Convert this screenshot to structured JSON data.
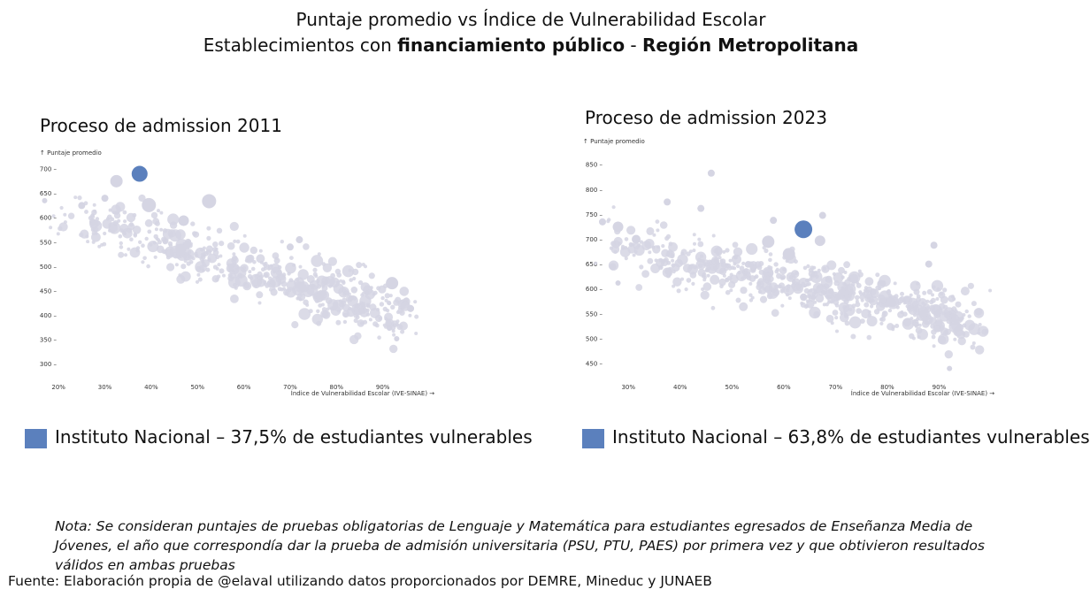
{
  "header": {
    "title_line1": "Puntaje promedio vs Índice de Vulnerabilidad Escolar",
    "title_line2_pre": "Establecimientos con ",
    "title_line2_bold1": "financiamiento público",
    "title_line2_mid": " - ",
    "title_line2_bold2": "Región Metropolitana"
  },
  "colors": {
    "highlight": "#5b80bd",
    "points": "#d5d5e3",
    "axis_text": "#333333"
  },
  "chart_data": [
    {
      "type": "scatter",
      "title": "Proceso de admission 2011",
      "ylabel": "↑ Puntaje promedio",
      "xlabel": "Índice de Vulnerabilidad Escolar (IVE-SINAE) →",
      "xlim": [
        15,
        100
      ],
      "ylim": [
        285,
        720
      ],
      "x_ticks": [
        "20%",
        "30%",
        "40%",
        "50%",
        "60%",
        "70%",
        "80%",
        "90%"
      ],
      "x_tick_values": [
        20,
        30,
        40,
        50,
        60,
        70,
        80,
        90
      ],
      "y_ticks": [
        "700",
        "650",
        "600",
        "550",
        "500",
        "450",
        "400",
        "350",
        "300"
      ],
      "y_tick_values": [
        700,
        650,
        600,
        550,
        500,
        450,
        400,
        350,
        300
      ],
      "trend": {
        "x_start": 20,
        "y_start": 615,
        "x_end": 95,
        "y_end": 400,
        "x_spread": 1.8,
        "y_spread": 30
      },
      "n_points": 520,
      "notable_points": [
        {
          "x": 32.5,
          "y": 675,
          "size": 7
        },
        {
          "x": 39.5,
          "y": 626,
          "size": 8
        },
        {
          "x": 52.5,
          "y": 634,
          "size": 8
        },
        {
          "x": 47,
          "y": 594,
          "size": 6
        },
        {
          "x": 92,
          "y": 466,
          "size": 7
        },
        {
          "x": 30,
          "y": 640,
          "size": 4
        },
        {
          "x": 25,
          "y": 625,
          "size": 4
        },
        {
          "x": 70,
          "y": 540,
          "size": 4
        },
        {
          "x": 72,
          "y": 555,
          "size": 4
        },
        {
          "x": 17,
          "y": 635,
          "size": 3
        },
        {
          "x": 93,
          "y": 352,
          "size": 3
        },
        {
          "x": 96,
          "y": 414,
          "size": 4
        }
      ],
      "highlight": {
        "name": "Instituto Nacional",
        "x": 37.5,
        "y": 690,
        "size": 9
      }
    },
    {
      "type": "scatter",
      "title": "Proceso de admission 2023",
      "ylabel": "↑ Puntaje promedio",
      "xlabel": "Índice de Vulnerabilidad Escolar (IVE-SINAE) →",
      "xlim": [
        18,
        100
      ],
      "ylim": [
        425,
        870
      ],
      "x_ticks": [
        "30%",
        "40%",
        "50%",
        "60%",
        "70%",
        "80%",
        "90%"
      ],
      "x_tick_values": [
        30,
        40,
        50,
        60,
        70,
        80,
        90
      ],
      "y_ticks": [
        "850",
        "800",
        "750",
        "700",
        "650",
        "600",
        "550",
        "500",
        "450"
      ],
      "y_tick_values": [
        850,
        800,
        750,
        700,
        650,
        600,
        550,
        500,
        450
      ],
      "trend": {
        "x_start": 25,
        "y_start": 690,
        "x_end": 97,
        "y_end": 530,
        "x_spread": 1.8,
        "y_spread": 28
      },
      "n_points": 620,
      "notable_points": [
        {
          "x": 46,
          "y": 833,
          "size": 4
        },
        {
          "x": 37.5,
          "y": 775,
          "size": 4
        },
        {
          "x": 44,
          "y": 762,
          "size": 4
        },
        {
          "x": 67.5,
          "y": 748,
          "size": 4
        },
        {
          "x": 58,
          "y": 738,
          "size": 4
        },
        {
          "x": 28,
          "y": 725,
          "size": 6
        },
        {
          "x": 31.5,
          "y": 700,
          "size": 5
        },
        {
          "x": 57,
          "y": 695,
          "size": 7
        },
        {
          "x": 61,
          "y": 670,
          "size": 7
        },
        {
          "x": 67,
          "y": 697,
          "size": 6
        },
        {
          "x": 25,
          "y": 735,
          "size": 4
        },
        {
          "x": 27,
          "y": 645,
          "size": 4
        },
        {
          "x": 89,
          "y": 688,
          "size": 4
        },
        {
          "x": 88,
          "y": 650,
          "size": 4
        },
        {
          "x": 92,
          "y": 440,
          "size": 3
        },
        {
          "x": 28,
          "y": 612,
          "size": 3
        }
      ],
      "highlight": {
        "name": "Instituto Nacional",
        "x": 63.8,
        "y": 720,
        "size": 10
      }
    }
  ],
  "legend": [
    {
      "label": "Instituto Nacional – 37,5% de estudiantes vulnerables"
    },
    {
      "label": "Instituto Nacional – 63,8% de estudiantes vulnerables"
    }
  ],
  "nota": "Nota: Se consideran puntajes de pruebas obligatorias de Lenguaje y Matemática para estudiantes egresados de Enseñanza Media de Jóvenes, el año que correspondía dar la prueba de admisión universitaria (PSU, PTU, PAES) por primera vez y que obtivieron resultados válidos en ambas pruebas",
  "fuente": "Fuente: Elaboración propia de @elaval utilizando datos proporcionados por DEMRE, Mineduc y JUNAEB"
}
